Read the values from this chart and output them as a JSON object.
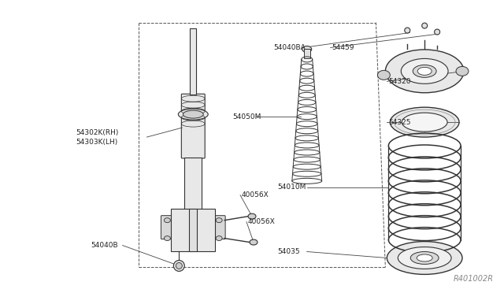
{
  "bg_color": "#ffffff",
  "line_color": "#333333",
  "dashed_color": "#555555",
  "fig_width": 6.4,
  "fig_height": 3.72,
  "dpi": 100,
  "watermark": "R401002R",
  "labels": {
    "54302K_RH": "54302K(RH)",
    "54303K_LH": "54303K(LH)",
    "54050M": "54050M",
    "40056X_top": "40056X",
    "40056X_bot": "40056X",
    "54040B": "54040B",
    "54040BA": "54040BA",
    "54459": "54459",
    "54320": "54320",
    "54325": "54325",
    "54010M": "54010M",
    "54035": "54035"
  }
}
